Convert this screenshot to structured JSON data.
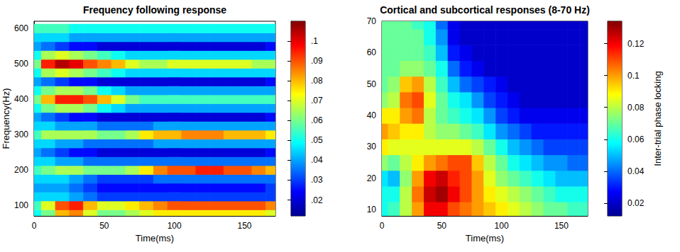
{
  "chart_data": [
    {
      "type": "heatmap",
      "title": "Frequency following response",
      "x_label": "Time(ms)",
      "y_label": "Frequency(Hz)",
      "x": [
        0,
        10,
        20,
        30,
        40,
        50,
        60,
        70,
        80,
        90,
        100,
        110,
        120,
        130,
        140,
        150,
        160,
        170
      ],
      "y": [
        75,
        100,
        125,
        150,
        175,
        200,
        225,
        250,
        275,
        300,
        325,
        350,
        375,
        400,
        425,
        450,
        475,
        500,
        525,
        550,
        575,
        600
      ],
      "z": [
        [
          0.05,
          0.06,
          0.08,
          0.085,
          0.07,
          0.06,
          0.06,
          0.065,
          0.07,
          0.075,
          0.075,
          0.075,
          0.075,
          0.075,
          0.075,
          0.075,
          0.075,
          0.07
        ],
        [
          0.055,
          0.07,
          0.09,
          0.095,
          0.08,
          0.07,
          0.07,
          0.075,
          0.08,
          0.085,
          0.09,
          0.09,
          0.09,
          0.09,
          0.09,
          0.09,
          0.09,
          0.085
        ],
        [
          0.045,
          0.045,
          0.045,
          0.04,
          0.035,
          0.03,
          0.03,
          0.03,
          0.03,
          0.03,
          0.03,
          0.03,
          0.03,
          0.03,
          0.03,
          0.03,
          0.03,
          0.03
        ],
        [
          0.04,
          0.04,
          0.04,
          0.035,
          0.03,
          0.025,
          0.025,
          0.025,
          0.025,
          0.025,
          0.025,
          0.025,
          0.025,
          0.025,
          0.025,
          0.025,
          0.025,
          0.03
        ],
        [
          0.045,
          0.045,
          0.045,
          0.04,
          0.035,
          0.03,
          0.03,
          0.03,
          0.03,
          0.035,
          0.035,
          0.035,
          0.035,
          0.035,
          0.035,
          0.035,
          0.035,
          0.035
        ],
        [
          0.055,
          0.06,
          0.065,
          0.065,
          0.06,
          0.06,
          0.06,
          0.065,
          0.075,
          0.085,
          0.09,
          0.09,
          0.095,
          0.095,
          0.09,
          0.09,
          0.085,
          0.08
        ],
        [
          0.045,
          0.045,
          0.04,
          0.04,
          0.035,
          0.035,
          0.035,
          0.035,
          0.035,
          0.035,
          0.035,
          0.035,
          0.035,
          0.035,
          0.035,
          0.035,
          0.035,
          0.035
        ],
        [
          0.04,
          0.035,
          0.03,
          0.025,
          0.025,
          0.02,
          0.02,
          0.02,
          0.02,
          0.02,
          0.02,
          0.02,
          0.02,
          0.02,
          0.02,
          0.02,
          0.02,
          0.025
        ],
        [
          0.045,
          0.045,
          0.04,
          0.04,
          0.035,
          0.035,
          0.035,
          0.035,
          0.035,
          0.04,
          0.04,
          0.04,
          0.04,
          0.04,
          0.04,
          0.04,
          0.04,
          0.04
        ],
        [
          0.055,
          0.065,
          0.065,
          0.065,
          0.065,
          0.06,
          0.06,
          0.065,
          0.075,
          0.08,
          0.08,
          0.085,
          0.085,
          0.085,
          0.08,
          0.08,
          0.08,
          0.075
        ],
        [
          0.045,
          0.045,
          0.04,
          0.04,
          0.04,
          0.035,
          0.035,
          0.035,
          0.035,
          0.04,
          0.04,
          0.04,
          0.04,
          0.04,
          0.04,
          0.04,
          0.04,
          0.04
        ],
        [
          0.04,
          0.035,
          0.03,
          0.025,
          0.025,
          0.02,
          0.02,
          0.02,
          0.02,
          0.02,
          0.02,
          0.02,
          0.02,
          0.02,
          0.02,
          0.02,
          0.02,
          0.025
        ],
        [
          0.05,
          0.06,
          0.065,
          0.065,
          0.06,
          0.05,
          0.045,
          0.04,
          0.04,
          0.04,
          0.04,
          0.04,
          0.04,
          0.04,
          0.04,
          0.04,
          0.04,
          0.04
        ],
        [
          0.06,
          0.08,
          0.095,
          0.095,
          0.09,
          0.08,
          0.07,
          0.06,
          0.055,
          0.055,
          0.055,
          0.055,
          0.055,
          0.055,
          0.055,
          0.055,
          0.055,
          0.055
        ],
        [
          0.05,
          0.06,
          0.065,
          0.065,
          0.06,
          0.05,
          0.045,
          0.04,
          0.04,
          0.04,
          0.04,
          0.04,
          0.04,
          0.04,
          0.04,
          0.04,
          0.04,
          0.04
        ],
        [
          0.04,
          0.035,
          0.03,
          0.025,
          0.025,
          0.02,
          0.02,
          0.02,
          0.02,
          0.02,
          0.02,
          0.02,
          0.02,
          0.02,
          0.02,
          0.02,
          0.02,
          0.025
        ],
        [
          0.05,
          0.065,
          0.07,
          0.065,
          0.06,
          0.055,
          0.05,
          0.045,
          0.045,
          0.045,
          0.045,
          0.045,
          0.045,
          0.045,
          0.045,
          0.045,
          0.045,
          0.045
        ],
        [
          0.06,
          0.095,
          0.105,
          0.1,
          0.09,
          0.085,
          0.08,
          0.07,
          0.065,
          0.065,
          0.07,
          0.07,
          0.07,
          0.07,
          0.07,
          0.07,
          0.065,
          0.065
        ],
        [
          0.05,
          0.065,
          0.07,
          0.065,
          0.06,
          0.055,
          0.05,
          0.045,
          0.045,
          0.045,
          0.045,
          0.045,
          0.045,
          0.045,
          0.045,
          0.045,
          0.045,
          0.045
        ],
        [
          0.04,
          0.035,
          0.03,
          0.025,
          0.025,
          0.02,
          0.02,
          0.02,
          0.02,
          0.02,
          0.02,
          0.02,
          0.02,
          0.02,
          0.02,
          0.02,
          0.02,
          0.025
        ],
        [
          0.045,
          0.045,
          0.045,
          0.04,
          0.04,
          0.04,
          0.04,
          0.04,
          0.04,
          0.04,
          0.04,
          0.04,
          0.04,
          0.04,
          0.04,
          0.04,
          0.04,
          0.04
        ],
        [
          0.055,
          0.055,
          0.055,
          0.05,
          0.05,
          0.05,
          0.05,
          0.05,
          0.05,
          0.05,
          0.05,
          0.05,
          0.05,
          0.05,
          0.05,
          0.05,
          0.05,
          0.05
        ]
      ],
      "xlim": [
        0,
        172
      ],
      "xticks": [
        0,
        50,
        100,
        150
      ],
      "ylim": [
        70,
        620
      ],
      "yticks": [
        100,
        200,
        300,
        400,
        500,
        600
      ],
      "colorbar_lim": [
        0.012,
        0.11
      ],
      "colorbar_ticks": [
        {
          "value": 0.02,
          "label": ".02"
        },
        {
          "value": 0.03,
          "label": ".03"
        },
        {
          "value": 0.04,
          "label": ".04"
        },
        {
          "value": 0.05,
          "label": ".05"
        },
        {
          "value": 0.06,
          "label": ".06"
        },
        {
          "value": 0.07,
          "label": ".07"
        },
        {
          "value": 0.08,
          "label": ".08"
        },
        {
          "value": 0.09,
          "label": ".09"
        },
        {
          "value": 0.1,
          "label": ".1"
        }
      ]
    },
    {
      "type": "heatmap",
      "title": "Cortical and subcortical responses (8-70 Hz)",
      "x_label": "Time(ms)",
      "x": [
        0,
        10,
        20,
        30,
        40,
        50,
        60,
        70,
        80,
        90,
        100,
        110,
        120,
        130,
        140,
        150,
        160,
        170
      ],
      "y": [
        10,
        15,
        20,
        25,
        30,
        35,
        40,
        45,
        50,
        55,
        60,
        65,
        70
      ],
      "z": [
        [
          0.06,
          0.065,
          0.08,
          0.1,
          0.12,
          0.12,
          0.11,
          0.105,
          0.1,
          0.095,
          0.09,
          0.085,
          0.08,
          0.075,
          0.07,
          0.07,
          0.065,
          0.065
        ],
        [
          0.06,
          0.06,
          0.08,
          0.105,
          0.125,
          0.13,
          0.12,
          0.11,
          0.1,
          0.09,
          0.085,
          0.08,
          0.075,
          0.07,
          0.065,
          0.06,
          0.06,
          0.06
        ],
        [
          0.055,
          0.05,
          0.075,
          0.1,
          0.12,
          0.125,
          0.115,
          0.11,
          0.1,
          0.085,
          0.075,
          0.07,
          0.065,
          0.06,
          0.055,
          0.05,
          0.05,
          0.05
        ],
        [
          0.075,
          0.07,
          0.08,
          0.09,
          0.1,
          0.105,
          0.11,
          0.11,
          0.095,
          0.08,
          0.07,
          0.06,
          0.055,
          0.05,
          0.045,
          0.045,
          0.04,
          0.04
        ],
        [
          0.09,
          0.085,
          0.085,
          0.085,
          0.085,
          0.085,
          0.085,
          0.085,
          0.08,
          0.07,
          0.06,
          0.05,
          0.045,
          0.04,
          0.035,
          0.035,
          0.035,
          0.035
        ],
        [
          0.1,
          0.095,
          0.09,
          0.09,
          0.08,
          0.075,
          0.075,
          0.07,
          0.065,
          0.055,
          0.045,
          0.04,
          0.035,
          0.03,
          0.03,
          0.03,
          0.03,
          0.03
        ],
        [
          0.09,
          0.09,
          0.1,
          0.105,
          0.08,
          0.07,
          0.065,
          0.06,
          0.055,
          0.045,
          0.035,
          0.03,
          0.025,
          0.025,
          0.025,
          0.025,
          0.025,
          0.025
        ],
        [
          0.075,
          0.08,
          0.105,
          0.11,
          0.085,
          0.07,
          0.06,
          0.055,
          0.045,
          0.035,
          0.03,
          0.025,
          0.02,
          0.02,
          0.02,
          0.02,
          0.02,
          0.02
        ],
        [
          0.07,
          0.075,
          0.095,
          0.1,
          0.08,
          0.065,
          0.05,
          0.04,
          0.035,
          0.03,
          0.025,
          0.02,
          0.02,
          0.02,
          0.02,
          0.02,
          0.02,
          0.02
        ],
        [
          0.07,
          0.07,
          0.075,
          0.075,
          0.07,
          0.06,
          0.04,
          0.03,
          0.025,
          0.02,
          0.02,
          0.02,
          0.02,
          0.02,
          0.02,
          0.02,
          0.02,
          0.02
        ],
        [
          0.07,
          0.07,
          0.07,
          0.07,
          0.065,
          0.05,
          0.03,
          0.025,
          0.02,
          0.02,
          0.02,
          0.02,
          0.02,
          0.02,
          0.02,
          0.02,
          0.02,
          0.02
        ],
        [
          0.07,
          0.07,
          0.07,
          0.07,
          0.06,
          0.045,
          0.025,
          0.02,
          0.02,
          0.02,
          0.02,
          0.02,
          0.02,
          0.02,
          0.02,
          0.02,
          0.02,
          0.02
        ],
        [
          0.07,
          0.07,
          0.07,
          0.065,
          0.06,
          0.04,
          0.025,
          0.02,
          0.02,
          0.02,
          0.02,
          0.02,
          0.02,
          0.02,
          0.02,
          0.02,
          0.02,
          0.02
        ]
      ],
      "xlim": [
        0,
        172
      ],
      "xticks": [
        0,
        50,
        100,
        150
      ],
      "ylim": [
        8,
        70
      ],
      "yticks": [
        10,
        20,
        30,
        40,
        50,
        60,
        70
      ],
      "colorbar_lim": [
        0.012,
        0.134
      ],
      "colorbar_ticks": [
        0.02,
        0.04,
        0.06,
        0.08,
        0.1,
        0.12
      ],
      "colorbar_label": "Inter-trial phase locking"
    }
  ]
}
